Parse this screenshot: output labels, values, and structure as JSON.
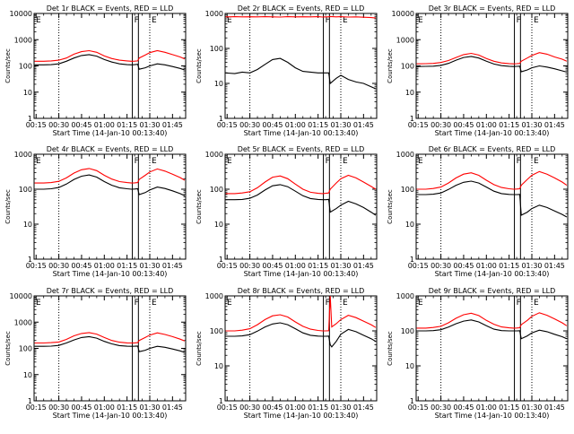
{
  "figure": {
    "ylabel": "Counts/sec",
    "xlabel": "Start Time (14-Jan-10 00:13:40)",
    "x_tick_labels": [
      "00:15",
      "00:30",
      "00:45",
      "01:00",
      "01:15",
      "01:30",
      "01:45"
    ],
    "x_tick_minutes": [
      15,
      30,
      45,
      60,
      75,
      90,
      105
    ],
    "x_range_minutes": [
      13.67,
      113.67
    ],
    "dotted_lines_minutes": [
      30,
      90
    ],
    "solid_lines_minutes": [
      78.5,
      82.5
    ],
    "flag_labels": [
      {
        "text": "F",
        "x": 78.5
      },
      {
        "text": "E",
        "x": 90
      }
    ],
    "left_flag_label": "E",
    "colors": {
      "events": "#000000",
      "lld": "#ff0000"
    }
  },
  "chart_data": [
    {
      "type": "line",
      "title": "Det 1r BLACK = Events, RED = LLD",
      "yscale": "log",
      "ylim": [
        1,
        10000
      ],
      "y_tick_labels": [
        "1",
        "10",
        "100",
        "1000",
        "10000"
      ],
      "x": [
        14,
        20,
        25,
        30,
        35,
        40,
        45,
        50,
        55,
        60,
        65,
        70,
        75,
        78,
        80,
        82,
        83,
        87,
        90,
        95,
        100,
        105,
        110,
        113
      ],
      "series": [
        {
          "values": [
            150,
            150,
            155,
            165,
            200,
            280,
            350,
            380,
            330,
            240,
            190,
            165,
            155,
            150,
            152,
            155,
            200,
            260,
            320,
            380,
            330,
            270,
            220,
            185
          ]
        },
        {
          "values": [
            110,
            110,
            112,
            120,
            150,
            200,
            250,
            270,
            235,
            175,
            140,
            120,
            112,
            110,
            112,
            115,
            75,
            85,
            100,
            120,
            110,
            95,
            80,
            70
          ]
        }
      ]
    },
    {
      "type": "line",
      "title": "Det 2r BLACK = Events, RED = LLD",
      "yscale": "log",
      "ylim": [
        1,
        1000
      ],
      "y_tick_labels": [
        "1",
        "10",
        "100",
        "1000"
      ],
      "x": [
        14,
        20,
        25,
        30,
        35,
        40,
        45,
        50,
        55,
        60,
        65,
        70,
        75,
        78,
        80,
        82,
        83,
        87,
        90,
        95,
        100,
        105,
        110,
        113
      ],
      "series": [
        {
          "values": [
            800,
            810,
            800,
            805,
            800,
            810,
            800,
            790,
            810,
            800,
            805,
            800,
            810,
            790,
            800,
            805,
            820,
            800,
            810,
            790,
            800,
            780,
            760,
            740
          ]
        },
        {
          "values": [
            20,
            19,
            21,
            20,
            25,
            35,
            48,
            52,
            40,
            28,
            22,
            21,
            20,
            20,
            20,
            20,
            10,
            14,
            17,
            13,
            11,
            10,
            8,
            7
          ]
        }
      ]
    },
    {
      "type": "line",
      "title": "Det 3r BLACK = Events, RED = LLD",
      "yscale": "log",
      "ylim": [
        1,
        10000
      ],
      "y_tick_labels": [
        "1",
        "10",
        "100",
        "1000",
        "10000"
      ],
      "x": [
        14,
        20,
        25,
        30,
        35,
        40,
        45,
        50,
        55,
        60,
        65,
        70,
        75,
        78,
        80,
        82,
        83,
        87,
        90,
        95,
        100,
        105,
        110,
        113
      ],
      "series": [
        {
          "values": [
            120,
            122,
            125,
            135,
            160,
            210,
            270,
            300,
            260,
            190,
            150,
            130,
            123,
            120,
            122,
            125,
            150,
            200,
            250,
            320,
            280,
            220,
            180,
            150
          ]
        },
        {
          "values": [
            95,
            96,
            98,
            105,
            125,
            165,
            210,
            230,
            200,
            150,
            118,
            102,
            97,
            95,
            96,
            98,
            60,
            70,
            85,
            100,
            90,
            78,
            65,
            58
          ]
        }
      ]
    },
    {
      "type": "line",
      "title": "Det 4r BLACK = Events, RED = LLD",
      "yscale": "log",
      "ylim": [
        1,
        1000
      ],
      "y_tick_labels": [
        "1",
        "10",
        "100",
        "1000"
      ],
      "x": [
        14,
        20,
        25,
        30,
        35,
        40,
        45,
        50,
        55,
        60,
        65,
        70,
        75,
        78,
        80,
        82,
        83,
        87,
        90,
        95,
        100,
        105,
        110,
        113
      ],
      "series": [
        {
          "values": [
            150,
            150,
            155,
            168,
            210,
            290,
            360,
            390,
            340,
            250,
            195,
            165,
            155,
            150,
            152,
            155,
            190,
            250,
            310,
            380,
            330,
            270,
            215,
            180
          ]
        },
        {
          "values": [
            100,
            100,
            103,
            112,
            140,
            190,
            235,
            255,
            222,
            165,
            130,
            110,
            103,
            100,
            101,
            103,
            70,
            80,
            95,
            115,
            105,
            90,
            75,
            65
          ]
        }
      ]
    },
    {
      "type": "line",
      "title": "Det 5r BLACK = Events, RED = LLD",
      "yscale": "log",
      "ylim": [
        1,
        1000
      ],
      "y_tick_labels": [
        "1",
        "10",
        "100",
        "1000"
      ],
      "x": [
        14,
        20,
        25,
        30,
        35,
        40,
        45,
        50,
        55,
        60,
        65,
        70,
        75,
        78,
        80,
        82,
        83,
        87,
        90,
        95,
        100,
        105,
        110,
        113
      ],
      "series": [
        {
          "values": [
            75,
            75,
            78,
            85,
            110,
            160,
            220,
            240,
            200,
            140,
            100,
            82,
            76,
            75,
            76,
            78,
            100,
            150,
            200,
            250,
            210,
            160,
            120,
            100
          ]
        },
        {
          "values": [
            50,
            50,
            51,
            55,
            68,
            95,
            125,
            135,
            118,
            88,
            65,
            54,
            51,
            50,
            50,
            51,
            22,
            28,
            35,
            45,
            38,
            30,
            22,
            18
          ]
        }
      ]
    },
    {
      "type": "line",
      "title": "Det 6r BLACK = Events, RED = LLD",
      "yscale": "log",
      "ylim": [
        1,
        1000
      ],
      "y_tick_labels": [
        "1",
        "10",
        "100",
        "1000"
      ],
      "x": [
        14,
        20,
        25,
        30,
        35,
        40,
        45,
        50,
        55,
        60,
        65,
        70,
        75,
        78,
        80,
        82,
        83,
        87,
        90,
        95,
        100,
        105,
        110,
        113
      ],
      "series": [
        {
          "values": [
            100,
            100,
            105,
            115,
            150,
            210,
            270,
            295,
            250,
            180,
            135,
            112,
            103,
            100,
            101,
            103,
            130,
            190,
            250,
            320,
            270,
            210,
            160,
            130
          ]
        },
        {
          "values": [
            70,
            70,
            72,
            78,
            98,
            130,
            158,
            170,
            150,
            115,
            88,
            75,
            71,
            70,
            70,
            71,
            18,
            22,
            28,
            35,
            30,
            24,
            19,
            16
          ]
        }
      ]
    },
    {
      "type": "line",
      "title": "Det 7r BLACK = Events, RED = LLD",
      "yscale": "log",
      "ylim": [
        1,
        10000
      ],
      "y_tick_labels": [
        "1",
        "10",
        "100",
        "1000",
        "10000"
      ],
      "x": [
        14,
        20,
        25,
        30,
        35,
        40,
        45,
        50,
        55,
        60,
        65,
        70,
        75,
        78,
        80,
        82,
        83,
        87,
        90,
        95,
        100,
        105,
        110,
        113
      ],
      "series": [
        {
          "values": [
            160,
            160,
            165,
            175,
            220,
            300,
            370,
            400,
            350,
            260,
            200,
            172,
            162,
            160,
            162,
            165,
            200,
            260,
            320,
            390,
            340,
            280,
            225,
            190
          ]
        },
        {
          "values": [
            120,
            120,
            122,
            130,
            160,
            210,
            260,
            280,
            245,
            185,
            148,
            128,
            121,
            120,
            121,
            123,
            75,
            85,
            100,
            120,
            110,
            95,
            80,
            70
          ]
        }
      ]
    },
    {
      "type": "line",
      "title": "Det 8r BLACK = Events, RED = LLD",
      "yscale": "log",
      "ylim": [
        1,
        1000
      ],
      "y_tick_labels": [
        "1",
        "10",
        "100",
        "1000"
      ],
      "x": [
        14,
        20,
        25,
        30,
        35,
        40,
        45,
        50,
        55,
        60,
        65,
        70,
        75,
        78,
        80,
        82,
        83,
        84,
        87,
        90,
        95,
        100,
        105,
        110,
        113
      ],
      "series": [
        {
          "values": [
            100,
            100,
            105,
            115,
            150,
            210,
            270,
            290,
            250,
            180,
            135,
            112,
            103,
            100,
            100,
            101,
            1000,
            130,
            160,
            210,
            280,
            240,
            190,
            150,
            125
          ]
        },
        {
          "values": [
            70,
            70,
            72,
            78,
            98,
            130,
            158,
            170,
            150,
            115,
            88,
            75,
            71,
            70,
            70,
            71,
            40,
            35,
            50,
            80,
            110,
            95,
            75,
            60,
            50
          ]
        }
      ]
    },
    {
      "type": "line",
      "title": "Det 9r BLACK = Events, RED = LLD",
      "yscale": "log",
      "ylim": [
        1,
        1000
      ],
      "y_tick_labels": [
        "1",
        "10",
        "100",
        "1000"
      ],
      "x": [
        14,
        20,
        25,
        30,
        35,
        40,
        45,
        50,
        55,
        60,
        65,
        70,
        75,
        78,
        80,
        82,
        83,
        87,
        90,
        95,
        100,
        105,
        110,
        113
      ],
      "series": [
        {
          "values": [
            120,
            120,
            125,
            135,
            170,
            230,
            290,
            320,
            275,
            200,
            155,
            130,
            122,
            120,
            121,
            123,
            150,
            200,
            260,
            330,
            280,
            220,
            170,
            140
          ]
        },
        {
          "values": [
            100,
            100,
            102,
            108,
            128,
            160,
            190,
            205,
            180,
            140,
            112,
            102,
            100,
            100,
            100,
            101,
            60,
            72,
            88,
            105,
            95,
            80,
            68,
            60
          ]
        }
      ]
    }
  ]
}
